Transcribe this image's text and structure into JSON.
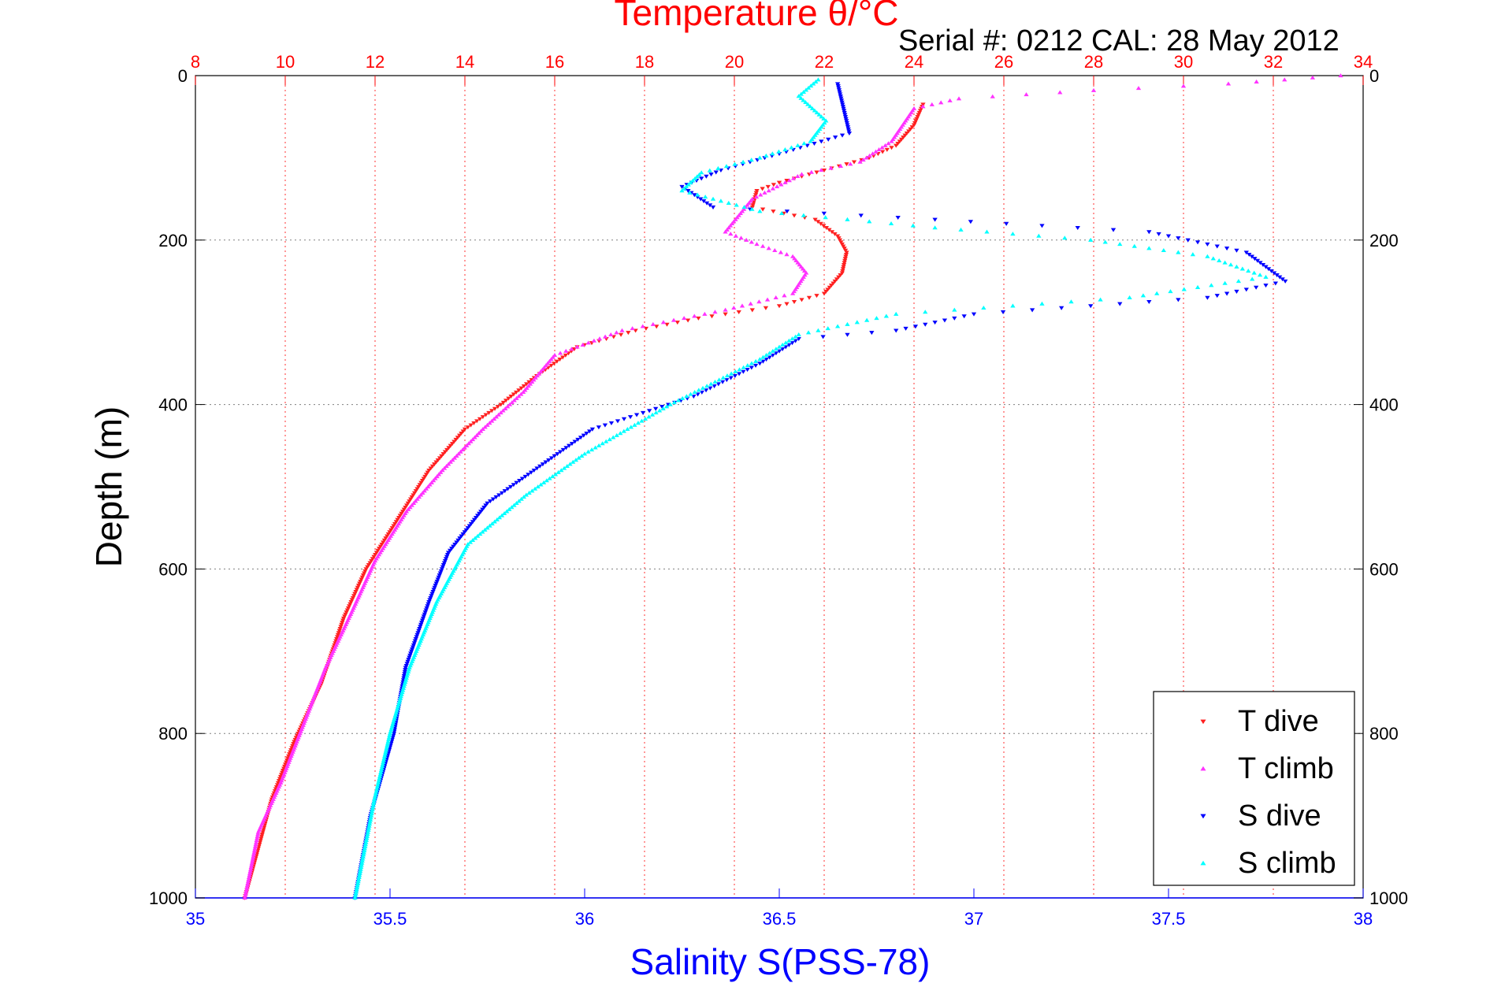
{
  "colors": {
    "temperature": "#ff0000",
    "salinity": "#0000ff",
    "t_dive": "#ff2020",
    "t_climb": "#ff33ff",
    "s_dive": "#0000ff",
    "s_climb": "#00ffff",
    "grid": "#bbbbbb",
    "text": "#000000"
  },
  "chart_data": {
    "type": "scatter",
    "title": "Temperature θ/°C",
    "subtitle": "Serial #: 0212  CAL: 28 May 2012",
    "ylabel": "Depth (m)",
    "top_axis": {
      "label": "Temperature θ/°C",
      "range": [
        8,
        34
      ],
      "ticks": [
        "8",
        "10",
        "12",
        "14",
        "16",
        "18",
        "20",
        "22",
        "24",
        "26",
        "28",
        "30",
        "32",
        "34"
      ],
      "gridlines": true
    },
    "bottom_axis": {
      "label": "Salinity S(PSS-78)",
      "range": [
        35,
        38
      ],
      "ticks": [
        "35",
        "35.5",
        "36",
        "36.5",
        "37",
        "37.5",
        "38"
      ]
    },
    "y_axis": {
      "range": [
        0,
        1000
      ],
      "reversed": true,
      "ticks": [
        "0",
        "200",
        "400",
        "600",
        "800",
        "1000"
      ],
      "gridlines": true
    },
    "legend_position": "bottom-right",
    "series": [
      {
        "name": "T dive",
        "axis": "top",
        "marker": "triangle-down",
        "points": [
          [
            24.2,
            35
          ],
          [
            24.0,
            60
          ],
          [
            23.6,
            85
          ],
          [
            23.0,
            100
          ],
          [
            22.0,
            115
          ],
          [
            21.0,
            130
          ],
          [
            20.5,
            140
          ],
          [
            20.4,
            160
          ],
          [
            21.8,
            175
          ],
          [
            22.3,
            195
          ],
          [
            22.5,
            215
          ],
          [
            22.4,
            240
          ],
          [
            22.0,
            265
          ],
          [
            21.0,
            280
          ],
          [
            19.2,
            295
          ],
          [
            17.8,
            310
          ],
          [
            16.5,
            330
          ],
          [
            15.6,
            365
          ],
          [
            14.8,
            400
          ],
          [
            14.0,
            430
          ],
          [
            13.2,
            480
          ],
          [
            12.5,
            540
          ],
          [
            11.8,
            600
          ],
          [
            11.3,
            660
          ],
          [
            10.8,
            740
          ],
          [
            10.2,
            810
          ],
          [
            9.7,
            880
          ],
          [
            9.1,
            1000
          ]
        ]
      },
      {
        "name": "T climb",
        "axis": "top",
        "marker": "triangle-up",
        "points": [
          [
            33.5,
            0
          ],
          [
            31.0,
            10
          ],
          [
            28.0,
            18
          ],
          [
            25.0,
            28
          ],
          [
            24.0,
            40
          ],
          [
            23.5,
            80
          ],
          [
            22.8,
            105
          ],
          [
            21.5,
            120
          ],
          [
            20.4,
            150
          ],
          [
            19.8,
            190
          ],
          [
            20.5,
            205
          ],
          [
            21.3,
            220
          ],
          [
            21.6,
            240
          ],
          [
            21.3,
            265
          ],
          [
            19.8,
            285
          ],
          [
            17.5,
            310
          ],
          [
            16.0,
            340
          ],
          [
            15.3,
            385
          ],
          [
            14.4,
            430
          ],
          [
            13.5,
            480
          ],
          [
            12.7,
            530
          ],
          [
            12.0,
            590
          ],
          [
            11.5,
            650
          ],
          [
            10.9,
            720
          ],
          [
            10.4,
            790
          ],
          [
            9.9,
            860
          ],
          [
            9.4,
            920
          ],
          [
            9.1,
            1000
          ]
        ]
      },
      {
        "name": "S dive",
        "axis": "bottom",
        "marker": "triangle-down",
        "points": [
          [
            36.65,
            10
          ],
          [
            36.68,
            70
          ],
          [
            36.5,
            95
          ],
          [
            36.35,
            115
          ],
          [
            36.25,
            135
          ],
          [
            36.33,
            160
          ],
          [
            36.9,
            175
          ],
          [
            37.45,
            190
          ],
          [
            37.7,
            215
          ],
          [
            37.8,
            250
          ],
          [
            37.6,
            270
          ],
          [
            37.0,
            290
          ],
          [
            36.8,
            310
          ],
          [
            36.55,
            320
          ],
          [
            36.45,
            350
          ],
          [
            36.28,
            390
          ],
          [
            36.02,
            430
          ],
          [
            35.9,
            470
          ],
          [
            35.75,
            520
          ],
          [
            35.65,
            580
          ],
          [
            35.6,
            640
          ],
          [
            35.54,
            720
          ],
          [
            35.51,
            800
          ],
          [
            35.45,
            900
          ],
          [
            35.41,
            1000
          ]
        ]
      },
      {
        "name": "S climb",
        "axis": "bottom",
        "marker": "triangle-up",
        "points": [
          [
            36.6,
            5
          ],
          [
            36.55,
            25
          ],
          [
            36.62,
            55
          ],
          [
            36.58,
            80
          ],
          [
            36.45,
            100
          ],
          [
            36.3,
            118
          ],
          [
            36.25,
            140
          ],
          [
            36.45,
            165
          ],
          [
            36.9,
            185
          ],
          [
            37.3,
            200
          ],
          [
            37.6,
            220
          ],
          [
            37.75,
            245
          ],
          [
            37.4,
            270
          ],
          [
            36.8,
            290
          ],
          [
            36.55,
            315
          ],
          [
            36.45,
            345
          ],
          [
            36.22,
            400
          ],
          [
            36.0,
            460
          ],
          [
            35.85,
            510
          ],
          [
            35.7,
            570
          ],
          [
            35.62,
            640
          ],
          [
            35.55,
            720
          ],
          [
            35.5,
            800
          ],
          [
            35.46,
            880
          ],
          [
            35.41,
            1000
          ]
        ]
      }
    ]
  }
}
